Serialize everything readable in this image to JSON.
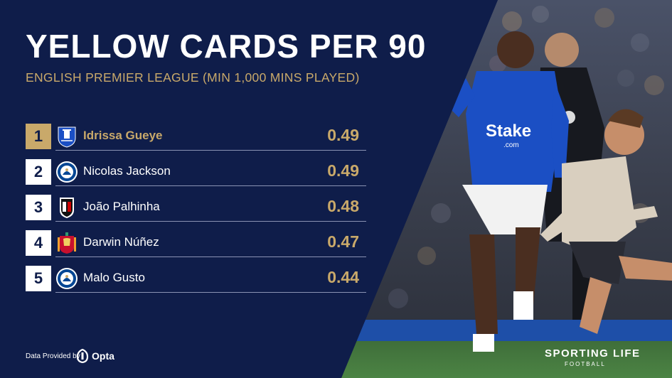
{
  "chart_data": {
    "type": "table",
    "title": "YELLOW CARDS PER 90",
    "subtitle": "ENGLISH PREMIER LEAGUE (MIN 1,000 MINS PLAYED)",
    "rows": [
      {
        "rank": "1",
        "player": "Idrissa Gueye",
        "club_crest": "everton-crest-icon",
        "value": "0.49"
      },
      {
        "rank": "2",
        "player": "Nicolas Jackson",
        "club_crest": "chelsea-crest-icon",
        "value": "0.49"
      },
      {
        "rank": "3",
        "player": "João Palhinha",
        "club_crest": "fulham-crest-icon",
        "value": "0.48"
      },
      {
        "rank": "4",
        "player": "Darwin Núñez",
        "club_crest": "liverpool-crest-icon",
        "value": "0.47"
      },
      {
        "rank": "5",
        "player": "Malo Gusto",
        "club_crest": "chelsea-crest-icon",
        "value": "0.44"
      }
    ]
  },
  "footer": {
    "provided_label": "Data Provided by",
    "provider": "Opta",
    "brand": "SPORTING LIFE",
    "brand_sub": "FOOTBALL"
  },
  "photo": {
    "description_icon": "football-players-photo",
    "shirt_sponsor": "Stake",
    "shirt_sponsor_sub": ".com"
  },
  "colors": {
    "background": "#0f1d4a",
    "accent_gold": "#c9a96a",
    "text": "#ffffff",
    "everton_blue": "#1b4fc4"
  }
}
